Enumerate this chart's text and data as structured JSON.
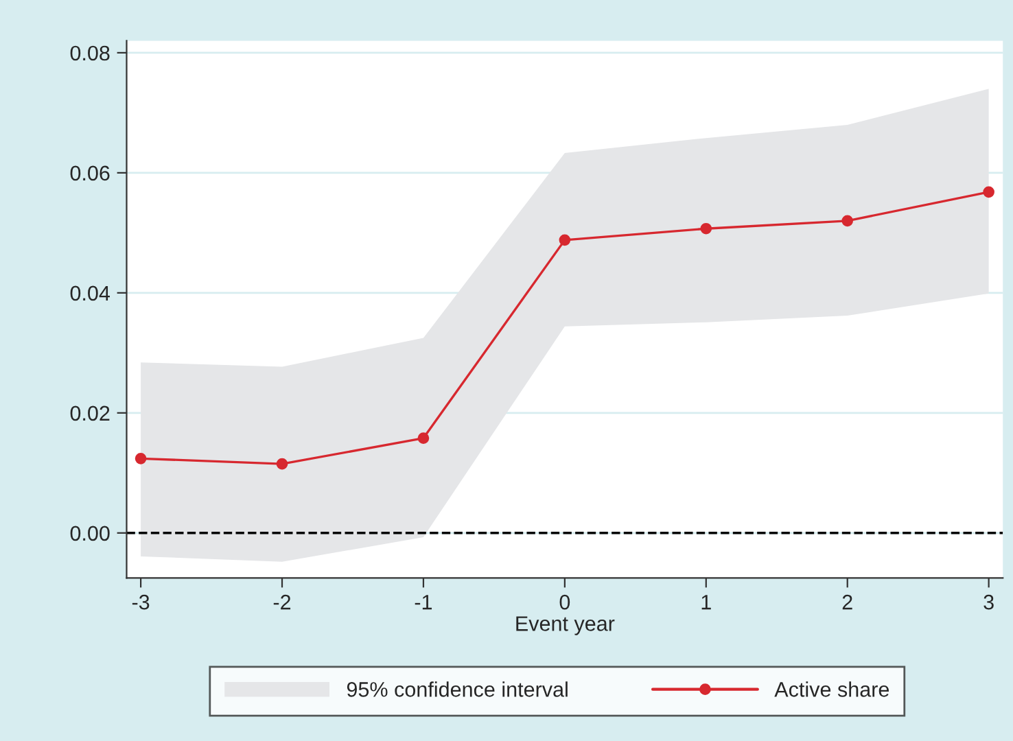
{
  "chart_data": {
    "type": "line",
    "xlabel": "Event year",
    "x": [
      -3,
      -2,
      -1,
      0,
      1,
      2,
      3
    ],
    "series": [
      {
        "name": "Active share",
        "color": "#d7282f",
        "values": [
          0.0124,
          0.0115,
          0.0158,
          0.0488,
          0.0507,
          0.052,
          0.0568
        ],
        "lower": [
          -0.0039,
          -0.0048,
          -0.0007,
          0.0344,
          0.0351,
          0.0362,
          0.0399
        ],
        "upper": [
          0.0284,
          0.0277,
          0.0325,
          0.0633,
          0.0658,
          0.068,
          0.074
        ]
      }
    ],
    "annotations": [
      "95% confidence interval"
    ],
    "xlim": [
      -3.1,
      3.1
    ],
    "ylim": [
      -0.0075,
      0.082
    ],
    "xticks": [
      -3,
      -2,
      -1,
      0,
      1,
      2,
      3
    ],
    "yticks": [
      {
        "value": 0,
        "label": "0.00"
      },
      {
        "value": 0.02,
        "label": "0.02"
      },
      {
        "value": 0.04,
        "label": "0.04"
      },
      {
        "value": 0.06,
        "label": "0.06"
      },
      {
        "value": 0.08,
        "label": "0.08"
      }
    ],
    "ref_lines": [
      {
        "axis": "y",
        "value": 0,
        "color": "#000000",
        "line_style": "dashed"
      }
    ],
    "grid": "y",
    "marker": "circle",
    "line_style": "solid",
    "legend": "bottom"
  }
}
